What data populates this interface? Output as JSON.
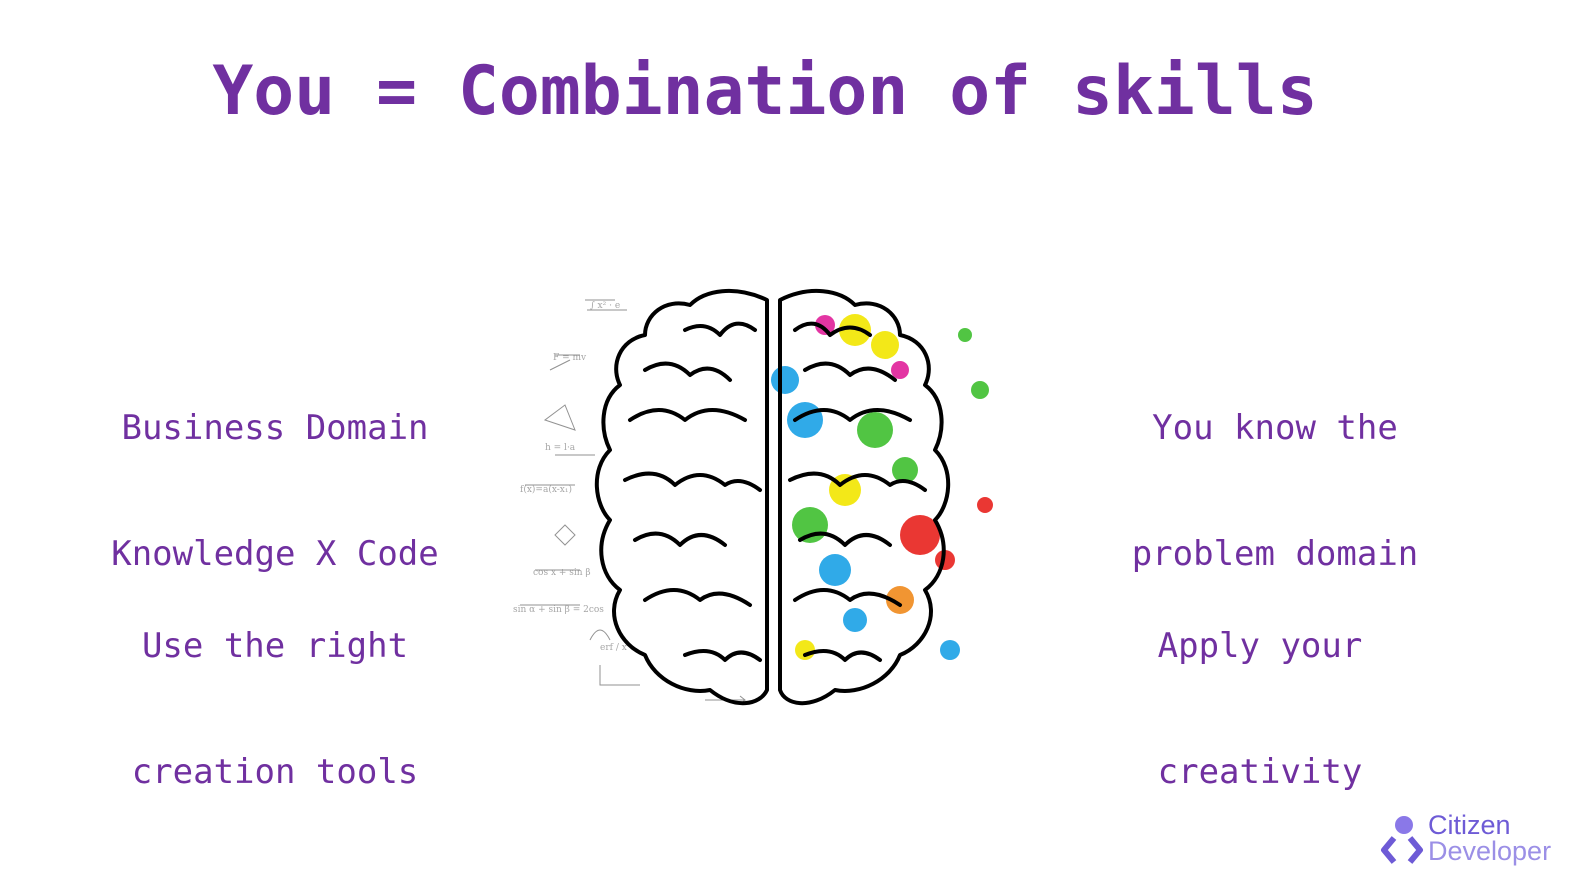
{
  "slide": {
    "title": "You = Combination of skills",
    "labels": {
      "top_left": [
        "Business Domain",
        "Knowledge X Code"
      ],
      "bottom_left": [
        "Use the right",
        "creation tools"
      ],
      "top_right": [
        "You know the",
        "problem domain"
      ],
      "bottom_right": [
        "Apply your",
        "creativity"
      ]
    },
    "image_icon": "brain-illustration-icon",
    "logo": {
      "word1": "Citizen",
      "word2": "Developer"
    }
  },
  "colors": {
    "accent": "#7030a0",
    "logo_primary": "#6e5bd6",
    "logo_secondary": "#9b8fe6"
  }
}
